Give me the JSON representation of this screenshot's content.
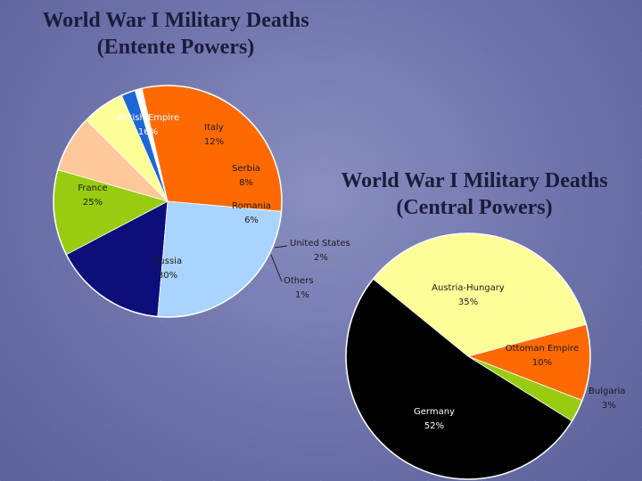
{
  "chart_data": [
    {
      "type": "pie",
      "title": "World War I Military Deaths",
      "subtitle": "(Entente Powers)",
      "slices": [
        {
          "label": "British Empire",
          "pct_label": "16%",
          "value": 16,
          "color": "#0e0e7a",
          "text_color": "#ffffff"
        },
        {
          "label": "Italy",
          "pct_label": "12%",
          "value": 12,
          "color": "#99cc11",
          "text_color": "#1a1a1a"
        },
        {
          "label": "Serbia",
          "pct_label": "8%",
          "value": 8,
          "color": "#ffc89a",
          "text_color": "#1a1a1a"
        },
        {
          "label": "Romania",
          "pct_label": "6%",
          "value": 6,
          "color": "#ffff99",
          "text_color": "#1a1a1a"
        },
        {
          "label": "United States",
          "pct_label": "2%",
          "value": 2,
          "color": "#1d66d6",
          "text_color": "#1a1a1a"
        },
        {
          "label": "Others",
          "pct_label": "1%",
          "value": 1,
          "color": "#ffffff",
          "text_color": "#1a1a1a"
        },
        {
          "label": "Russia",
          "pct_label": "30%",
          "value": 30,
          "color": "#ff6a00",
          "text_color": "#1a1a1a"
        },
        {
          "label": "France",
          "pct_label": "25%",
          "value": 25,
          "color": "#a9d4ff",
          "text_color": "#1a1a1a"
        }
      ]
    },
    {
      "type": "pie",
      "title": "World War I Military Deaths",
      "subtitle": "(Central Powers)",
      "slices": [
        {
          "label": "Ottoman Empire",
          "pct_label": "10%",
          "value": 10,
          "color": "#ff6a00",
          "text_color": "#1a1a1a"
        },
        {
          "label": "Bulgaria",
          "pct_label": "3%",
          "value": 3,
          "color": "#99cc11",
          "text_color": "#1a1a1a"
        },
        {
          "label": "Germany",
          "pct_label": "52%",
          "value": 52,
          "color": "#000000",
          "text_color": "#ffffff"
        },
        {
          "label": "Austria-Hungary",
          "pct_label": "35%",
          "value": 35,
          "color": "#ffff99",
          "text_color": "#1a1a1a"
        }
      ]
    }
  ]
}
